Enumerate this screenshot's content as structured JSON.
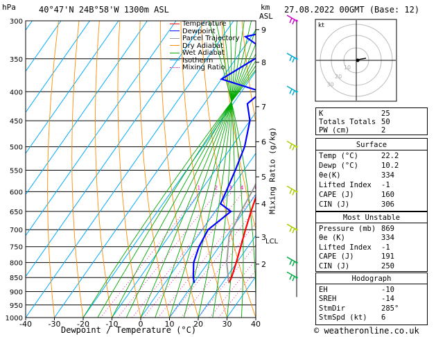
{
  "header": {
    "hpa_label": "hPa",
    "location": "40°47'N  24B°58'W  1300m  ASL",
    "km_label": "km",
    "asl_label": "ASL",
    "datetime": "27.08.2022  00GMT  (Base: 12)"
  },
  "footer": {
    "credit": "© weatheronline.co.uk"
  },
  "legend": [
    {
      "label": "Temperature",
      "color": "#ff0000",
      "style": "solid"
    },
    {
      "label": "Dewpoint",
      "color": "#0000ff",
      "style": "solid"
    },
    {
      "label": "Parcel Trajectory",
      "color": "#999999",
      "style": "solid"
    },
    {
      "label": "Dry Adiabat",
      "color": "#ff8c00",
      "style": "solid"
    },
    {
      "label": "Wet Adiabat",
      "color": "#00aa00",
      "style": "solid"
    },
    {
      "label": "Isotherm",
      "color": "#00aaff",
      "style": "solid"
    },
    {
      "label": "Mixing Ratio",
      "color": "#ff00aa",
      "style": "dotted"
    }
  ],
  "chart_data": {
    "type": "line",
    "title": "",
    "xlabel": "Dewpoint / Temperature (°C)",
    "ylabel": "hPa",
    "xlim": [
      -40,
      40
    ],
    "ylim": [
      1000,
      300
    ],
    "x_ticks": [
      -40,
      -30,
      -20,
      -10,
      0,
      10,
      20,
      30,
      40
    ],
    "p_ticks": [
      300,
      350,
      400,
      450,
      500,
      550,
      600,
      650,
      700,
      750,
      800,
      850,
      900,
      950,
      1000
    ],
    "km_ticks": [
      {
        "label": "9",
        "p": 311
      },
      {
        "label": "8",
        "p": 355
      },
      {
        "label": "7",
        "p": 425
      },
      {
        "label": "6",
        "p": 490
      },
      {
        "label": "5",
        "p": 565
      },
      {
        "label": "4",
        "p": 630
      },
      {
        "label": "3",
        "p": 722
      },
      {
        "label": "2",
        "p": 805
      }
    ],
    "lcl": {
      "label": "LCL",
      "p": 720
    },
    "mixing_ratio_axis_label": "Mixing Ratio (g/kg)",
    "mixing_ratio_lines": [
      {
        "label": "1",
        "x": -10
      },
      {
        "label": "2",
        "x": -4
      },
      {
        "label": "3",
        "x": 1
      },
      {
        "label": "4",
        "x": 5
      },
      {
        "label": "6",
        "x": 10
      },
      {
        "label": "8",
        "x": 14
      },
      {
        "label": "10",
        "x": 18
      },
      {
        "label": "16",
        "x": 24
      },
      {
        "label": "20",
        "x": 28
      },
      {
        "label": "25",
        "x": 31
      }
    ],
    "series": [
      {
        "name": "Temperature",
        "color": "#ff0000",
        "points": [
          [
            869,
            22.2
          ],
          [
            850,
            21.8
          ],
          [
            800,
            19.8
          ],
          [
            750,
            17.5
          ],
          [
            700,
            15
          ],
          [
            650,
            12.5
          ],
          [
            600,
            10
          ],
          [
            550,
            7.5
          ],
          [
            500,
            4.5
          ],
          [
            450,
            1
          ],
          [
            400,
            -2.5
          ],
          [
            350,
            -5.5
          ],
          [
            300,
            -8
          ]
        ]
      },
      {
        "name": "Dewpoint",
        "color": "#0000ff",
        "points": [
          [
            869,
            10.2
          ],
          [
            850,
            8.5
          ],
          [
            800,
            5
          ],
          [
            750,
            3
          ],
          [
            700,
            2
          ],
          [
            650,
            5.5
          ],
          [
            630,
            0
          ],
          [
            600,
            -1
          ],
          [
            550,
            -3
          ],
          [
            500,
            -5.5
          ],
          [
            450,
            -10
          ],
          [
            420,
            -15
          ],
          [
            400,
            -13
          ],
          [
            380,
            -30
          ],
          [
            340,
            -21
          ],
          [
            320,
            -32
          ],
          [
            300,
            -12
          ]
        ]
      },
      {
        "name": "Parcel Trajectory",
        "color": "#999999",
        "points": [
          [
            869,
            22.2
          ],
          [
            800,
            16.5
          ],
          [
            720,
            11
          ],
          [
            650,
            9
          ],
          [
            600,
            8
          ],
          [
            550,
            6.5
          ],
          [
            500,
            4
          ],
          [
            450,
            1
          ],
          [
            400,
            -2.5
          ],
          [
            350,
            -6
          ],
          [
            300,
            -9
          ]
        ]
      }
    ]
  },
  "hodograph": {
    "unit_label": "kt",
    "ring_labels": [
      "10",
      "20",
      "30"
    ],
    "points": [
      [
        0,
        0
      ],
      [
        3,
        1
      ],
      [
        8,
        2
      ],
      [
        14,
        3
      ]
    ]
  },
  "wind_barbs": [
    {
      "p": 300,
      "color": "#cc00cc"
    },
    {
      "p": 350,
      "color": "#00aacc"
    },
    {
      "p": 400,
      "color": "#00aacc"
    },
    {
      "p": 500,
      "color": "#aacc00"
    },
    {
      "p": 600,
      "color": "#aacc00"
    },
    {
      "p": 700,
      "color": "#aacc00"
    },
    {
      "p": 800,
      "color": "#00aa44"
    },
    {
      "p": 850,
      "color": "#00aa44"
    }
  ],
  "indices": {
    "rows": [
      {
        "label": "K",
        "value": "25"
      },
      {
        "label": "Totals Totals",
        "value": "50"
      },
      {
        "label": "PW (cm)",
        "value": "2"
      }
    ]
  },
  "surface": {
    "title": "Surface",
    "rows": [
      {
        "label": "Temp (°C)",
        "value": "22.2"
      },
      {
        "label": "Dewp (°C)",
        "value": "10.2"
      },
      {
        "label": "θe(K)",
        "value": "334"
      },
      {
        "label": "Lifted Index",
        "value": "-1"
      },
      {
        "label": "CAPE (J)",
        "value": "160"
      },
      {
        "label": "CIN (J)",
        "value": "306"
      }
    ]
  },
  "most_unstable": {
    "title": "Most Unstable",
    "rows": [
      {
        "label": "Pressure (mb)",
        "value": "869"
      },
      {
        "label": "θe (K)",
        "value": "334"
      },
      {
        "label": "Lifted Index",
        "value": "-1"
      },
      {
        "label": "CAPE (J)",
        "value": "191"
      },
      {
        "label": "CIN (J)",
        "value": "250"
      }
    ]
  },
  "hodo_table": {
    "title": "Hodograph",
    "rows": [
      {
        "label": "EH",
        "value": "-10"
      },
      {
        "label": "SREH",
        "value": "-14"
      },
      {
        "label": "StmDir",
        "value": "285°"
      },
      {
        "label": "StmSpd (kt)",
        "value": "6"
      }
    ]
  }
}
